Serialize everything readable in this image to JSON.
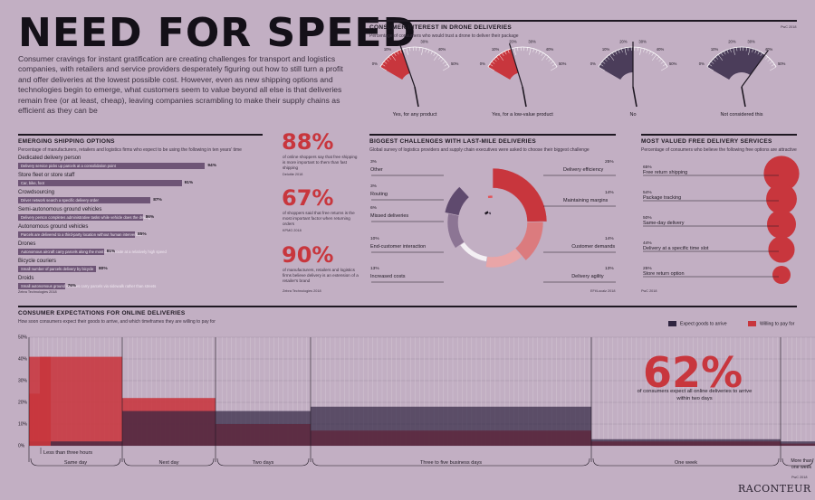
{
  "header": {
    "title": "NEED FOR SPEED",
    "intro": "Consumer cravings for instant gratification are creating challenges for transport and logistics companies, with retailers and service providers desperately figuring out how to still turn a profit and offer deliveries at the lowest possible cost. However, even as new shipping options and technologies begin to emerge, what customers seem to value beyond all else is that deliveries remain free (or at least, cheap), leaving companies scrambling to make their supply chains as efficient as they can be"
  },
  "brand": "RACONTEUR",
  "colors": {
    "bg": "#c2afc3",
    "red": "#c8363d",
    "purple": "#4b3d5a",
    "dark": "#1e1822",
    "bar": "#6e5576"
  },
  "drone": {
    "title": "CONSUMER INTEREST IN DRONE DELIVERIES",
    "subtitle": "Percentage of consumers who would trust a drone to deliver their package",
    "source": "PwC 2018",
    "tick_labels": [
      "0%",
      "10%",
      "20%",
      "30%",
      "40%",
      "50%"
    ]
  },
  "shipping": {
    "title": "EMERGING SHIPPING OPTIONS",
    "subtitle": "Percentage of manufacturers, retailers and logistics firms who expect to be using the following in ten years' time",
    "source": "Zebra Technologies 2018"
  },
  "stats": [
    {
      "value": "88%",
      "text": "of online shoppers say that free shipping is more important to them than fast shipping",
      "source": "Deloitte 2018"
    },
    {
      "value": "67%",
      "text": "of shoppers said that free returns is the most important factor when returning orders",
      "source": "KPMG 2018"
    },
    {
      "value": "90%",
      "text": "of manufacturers, retailers and logistics firms believe delivery is an extension of a retailer's brand",
      "source": "Zebra Technologies 2018"
    }
  ],
  "challenges": {
    "title": "BIGGEST CHALLENGES WITH LAST-MILE DELIVERIES",
    "subtitle": "Global survey of logistics providers and supply chain executives were asked to choose their biggest challenge",
    "source": "EFt/Localz 2018"
  },
  "freedel": {
    "title": "MOST VALUED FREE DELIVERY SERVICES",
    "subtitle": "Percentage of consumers who believe the following free options are attractive",
    "source": "PwC 2018"
  },
  "expect": {
    "title": "CONSUMER EXPECTATIONS FOR ONLINE DELIVERIES",
    "subtitle": "How soon consumers expect their goods to arrive, and which timeframes they are willing to pay for",
    "legend": [
      "Expect goods to arrive",
      "Willing to pay for"
    ],
    "yticks": [
      "50%",
      "40%",
      "30%",
      "20%",
      "10%",
      "0%"
    ],
    "sublabel": "Less than three hours",
    "big_value": "62%",
    "big_text": "of consumers expect all online deliveries to arrive within two days",
    "source": "PwC 2018"
  },
  "chart_data": [
    {
      "type": "gauge",
      "title": "CONSUMER INTEREST IN DRONE DELIVERIES",
      "categories": [
        "Yes, for any product",
        "Yes, for a low-value product",
        "No",
        "Not considered this"
      ],
      "values": [
        17,
        18,
        25,
        40
      ],
      "range": [
        0,
        50
      ]
    },
    {
      "type": "bar",
      "title": "EMERGING SHIPPING OPTIONS",
      "categories": [
        "Dedicated delivery person",
        "Store fleet or store staff",
        "Crowdsourcing",
        "Semi-autonomous ground vehicles",
        "Autonomous ground vehicles",
        "Drones",
        "Bicycle couriers",
        "Droids"
      ],
      "descriptions": [
        "Delivery service picks up parcels at a consolidation point",
        "Car, bike, foot",
        "Driver network search a specific delivery order",
        "Delivery person completes administrative tasks while vehicle does the driving",
        "Parcels are delivered to a third-party location without human intervention",
        "Autonomous aircraft carry parcels along the most direct route at a relatively high speed",
        "Small number of parcels delivery by bicycle",
        "Small autonomous ground vehicles carry parcels via sidewalk rather than streets"
      ],
      "values": [
        94,
        91,
        87,
        86,
        85,
        81,
        80,
        76
      ],
      "value_labels": [
        "94%",
        "91%",
        "87%",
        "86%",
        "85%",
        "81%",
        "80%",
        "76%"
      ]
    },
    {
      "type": "pie",
      "title": "BIGGEST CHALLENGES WITH LAST-MILE DELIVERIES",
      "categories": [
        "Delivery efficiency",
        "Maintaining margins",
        "Customer demands",
        "Delivery agility",
        "Increased costs",
        "End-customer interaction",
        "Missed deliveries",
        "Routing",
        "Other"
      ],
      "values": [
        25,
        14,
        14,
        13,
        13,
        10,
        6,
        3,
        3
      ],
      "value_labels": [
        "25%",
        "14%",
        "14%",
        "13%",
        "13%",
        "10%",
        "6%",
        "3%",
        "3%"
      ]
    },
    {
      "type": "bubble",
      "title": "MOST VALUED FREE DELIVERY SERVICES",
      "categories": [
        "Free return shipping",
        "Package tracking",
        "Same-day delivery",
        "Delivery at a specific time slot",
        "Store return option"
      ],
      "values": [
        65,
        54,
        50,
        44,
        25
      ],
      "value_labels": [
        "65%",
        "54%",
        "50%",
        "44%",
        "25%"
      ]
    },
    {
      "type": "area",
      "title": "CONSUMER EXPECTATIONS FOR ONLINE DELIVERIES",
      "categories": [
        "Same day",
        "Next day",
        "Two days",
        "Three to five business days",
        "One week",
        "More than one week"
      ],
      "ylim": [
        0,
        50
      ],
      "series": [
        {
          "name": "Expect goods to arrive",
          "values": [
            2,
            16,
            16,
            18,
            3,
            2
          ]
        },
        {
          "name": "Willing to pay for",
          "values": [
            41,
            22,
            10,
            7,
            2,
            1
          ]
        }
      ]
    }
  ]
}
